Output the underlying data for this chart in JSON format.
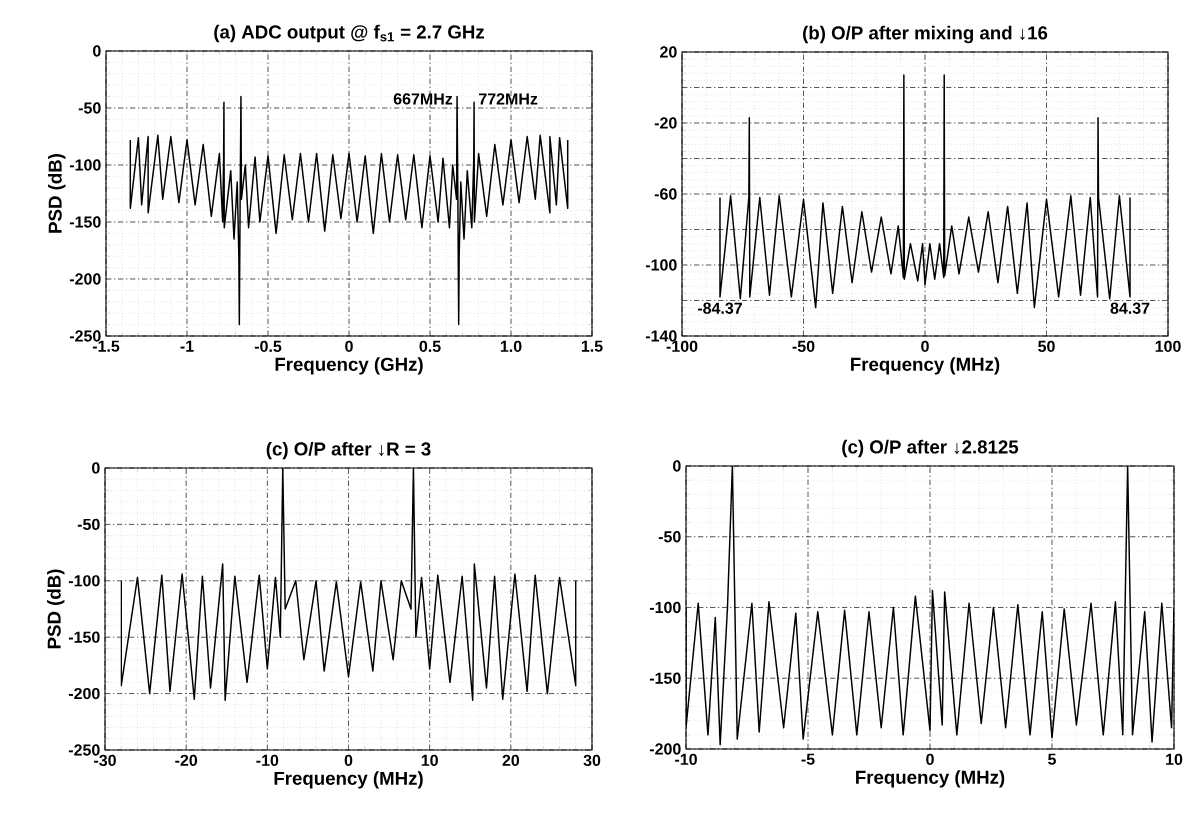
{
  "chart_data": [
    {
      "type": "line",
      "title": "(a) ADC output @ f$_{s1}$ = 2.7 GHz",
      "xlabel": "Frequency (GHz)",
      "ylabel": "PSD (dB)",
      "xlim": [
        -1.5,
        1.5
      ],
      "ylim": [
        -250,
        0
      ],
      "xticks": [
        -1.5,
        -1,
        -0.5,
        0,
        0.5,
        {
          "value": 1,
          "label": "1.0"
        },
        1.5
      ],
      "yticks": [
        -250,
        -200,
        -150,
        -100,
        -50,
        0
      ],
      "grid": true,
      "series": [
        {
          "color": "#000000",
          "x": [
            -1.35,
            -1.35,
            -1.3,
            -1.28,
            -1.24,
            -1.24,
            -1.18,
            -1.15,
            -1.1,
            -1.05,
            -1.0,
            -0.95,
            -0.9,
            -0.85,
            -0.8,
            -0.78,
            -0.774,
            -0.772,
            -0.77,
            -0.73,
            -0.71,
            -0.69,
            -0.68,
            -0.677,
            -0.672,
            -0.667,
            -0.664,
            -0.64,
            -0.62,
            -0.58,
            -0.55,
            -0.5,
            -0.45,
            -0.4,
            -0.35,
            -0.3,
            -0.25,
            -0.2,
            -0.15,
            -0.1,
            -0.05,
            0,
            0.05,
            0.1,
            0.15,
            0.2,
            0.25,
            0.3,
            0.35,
            0.4,
            0.45,
            0.5,
            0.55,
            0.58,
            0.62,
            0.64,
            0.664,
            0.667,
            0.672,
            0.677,
            0.68,
            0.69,
            0.71,
            0.73,
            0.758,
            0.77,
            0.772,
            0.774,
            0.8,
            0.85,
            0.9,
            0.95,
            1.0,
            1.05,
            1.1,
            1.15,
            1.18,
            1.24,
            1.24,
            1.28,
            1.3,
            1.35,
            1.35
          ],
          "values": [
            -78,
            -138,
            -76,
            -135,
            -75,
            -142,
            -74,
            -130,
            -75,
            -133,
            -78,
            -135,
            -82,
            -145,
            -90,
            -150,
            -95,
            -45,
            -155,
            -105,
            -165,
            -115,
            -180,
            -240,
            -130,
            -40,
            -130,
            -100,
            -155,
            -93,
            -150,
            -92,
            -160,
            -91,
            -148,
            -90,
            -150,
            -90,
            -158,
            -91,
            -147,
            -90,
            -150,
            -92,
            -160,
            -90,
            -150,
            -91,
            -148,
            -91,
            -155,
            -92,
            -150,
            -94,
            -155,
            -100,
            -130,
            -40,
            -130,
            -240,
            -180,
            -115,
            -165,
            -105,
            -155,
            -95,
            -45,
            -150,
            -90,
            -145,
            -82,
            -135,
            -78,
            -133,
            -75,
            -130,
            -74,
            -142,
            -75,
            -135,
            -76,
            -138,
            -78
          ]
        }
      ],
      "annotations": [
        {
          "text": "667MHz",
          "x": 0.667,
          "y": -42
        },
        {
          "text": "772MHz",
          "x": 0.772,
          "y": -42
        }
      ]
    },
    {
      "type": "line",
      "title": "(b) O/P after mixing and ↓16",
      "xlabel": "Frequency (MHz)",
      "xlim": [
        -100,
        100
      ],
      "ylim": [
        -140,
        20
      ],
      "xticks": [
        -100,
        -50,
        0,
        50,
        100
      ],
      "yticks": [
        -140,
        {
          "value": -120,
          "label": null
        },
        -100,
        {
          "value": -80,
          "label": null
        },
        -60,
        {
          "value": -40,
          "label": null
        },
        -20,
        {
          "value": 0,
          "label": null
        },
        20
      ],
      "grid": true,
      "series": [
        {
          "color": "#000000",
          "x": [
            -84.37,
            -84.37,
            -80,
            -76,
            -72.5,
            -72.3,
            -72.1,
            -68,
            -64,
            -60,
            -55,
            -50,
            -45,
            -42,
            -38,
            -34,
            -30,
            -26,
            -22,
            -18,
            -14,
            -11,
            -8.9,
            -8.7,
            -8.5,
            -6,
            -3,
            -1,
            0,
            2,
            4,
            6,
            7.7,
            7.9,
            8.1,
            11,
            14,
            18,
            22,
            26,
            30,
            34,
            38,
            42,
            45,
            50,
            55,
            60,
            64,
            68,
            71.0,
            71.2,
            71.4,
            76,
            80,
            84.37,
            84.37
          ],
          "values": [
            -62,
            -118,
            -61,
            -119,
            -62,
            -17,
            -118,
            -62,
            -117,
            -61,
            -118,
            -63,
            -124,
            -65,
            -116,
            -67,
            -110,
            -70,
            -104,
            -73,
            -105,
            -78,
            -107,
            7,
            -108,
            -88,
            -109,
            -88,
            -111,
            -88,
            -108,
            -88,
            -107,
            7,
            -106,
            -78,
            -105,
            -73,
            -104,
            -70,
            -110,
            -67,
            -116,
            -65,
            -124,
            -63,
            -118,
            -61,
            -117,
            -62,
            -118,
            -17,
            -62,
            -119,
            -61,
            -118,
            -62
          ]
        }
      ],
      "annotations": [
        {
          "text": "-84.37",
          "x": -84.37,
          "y": -118
        },
        {
          "text": "84.37",
          "x": 84.37,
          "y": -118
        }
      ]
    },
    {
      "type": "line",
      "title": "(c) O/P after ↓R = 3",
      "xlabel": "Frequency (MHz)",
      "ylabel": "PSD (dB)",
      "xlim": [
        -30,
        30
      ],
      "ylim": [
        -250,
        0
      ],
      "xticks": [
        -30,
        -20,
        -10,
        0,
        10,
        20,
        30
      ],
      "yticks": [
        -250,
        -200,
        -150,
        -100,
        -50,
        0
      ],
      "grid": true,
      "series": [
        {
          "color": "#000000",
          "x": [
            -28,
            -28,
            -26,
            -24.5,
            -23,
            -22,
            -20.5,
            -19,
            -18,
            -17,
            -15.5,
            -15.2,
            -14,
            -12.5,
            -11,
            -10,
            -9,
            -8.4,
            -8.1,
            -7.8,
            -6.5,
            -5.5,
            -4,
            -3,
            -1.5,
            0,
            1.5,
            3,
            4,
            5.5,
            6.5,
            7.7,
            8.0,
            8.3,
            9,
            10,
            11,
            12.5,
            14,
            15.3,
            15.5,
            17,
            18,
            19,
            20.5,
            22,
            23,
            24.5,
            26,
            28,
            28
          ],
          "values": [
            -100,
            -193,
            -97,
            -200,
            -95,
            -198,
            -94,
            -205,
            -96,
            -195,
            -85,
            -206,
            -96,
            -190,
            -95,
            -178,
            -97,
            -150,
            0,
            -125,
            -100,
            -170,
            -100,
            -180,
            -101,
            -185,
            -101,
            -180,
            -100,
            -170,
            -100,
            -125,
            0,
            -150,
            -97,
            -178,
            -95,
            -190,
            -96,
            -206,
            -85,
            -195,
            -96,
            -205,
            -94,
            -198,
            -95,
            -200,
            -97,
            -193,
            -100
          ]
        }
      ]
    },
    {
      "type": "line",
      "title": "(c) O/P after ↓2.8125",
      "xlabel": "Frequency (MHz)",
      "xlim": [
        -10,
        10
      ],
      "ylim": [
        -200,
        0
      ],
      "xticks": [
        -10,
        -5,
        0,
        5,
        10
      ],
      "yticks": [
        -200,
        -150,
        -100,
        -50,
        0
      ],
      "grid": true,
      "series": [
        {
          "color": "#000000",
          "x": [
            -10,
            -10,
            -9.5,
            -9.1,
            -8.8,
            -8.6,
            -8.3,
            -8.1,
            -7.9,
            -7.3,
            -7.0,
            -6.6,
            -6.0,
            -5.5,
            -5.2,
            -4.6,
            -4.0,
            -3.5,
            -3.0,
            -2.5,
            -2.0,
            -1.5,
            -1.1,
            -0.6,
            0,
            0.1,
            0.5,
            0.6,
            1.1,
            1.6,
            2.1,
            2.6,
            3.1,
            3.6,
            4.1,
            4.6,
            5.0,
            5.5,
            6.0,
            6.6,
            7.1,
            7.6,
            7.9,
            8.1,
            8.3,
            8.8,
            9.1,
            9.5,
            9.9,
            10
          ],
          "values": [
            -100,
            -185,
            -97,
            -190,
            -107,
            -197,
            -100,
            0,
            -193,
            -97,
            -188,
            -96,
            -185,
            -104,
            -193,
            -103,
            -190,
            -102,
            -190,
            -103,
            -185,
            -100,
            -190,
            -92,
            -187,
            -88,
            -183,
            -89,
            -190,
            -97,
            -182,
            -100,
            -185,
            -98,
            -190,
            -103,
            -192,
            -101,
            -183,
            -97,
            -190,
            -96,
            -190,
            0,
            -190,
            -103,
            -195,
            -97,
            -185,
            -100
          ]
        }
      ]
    }
  ]
}
